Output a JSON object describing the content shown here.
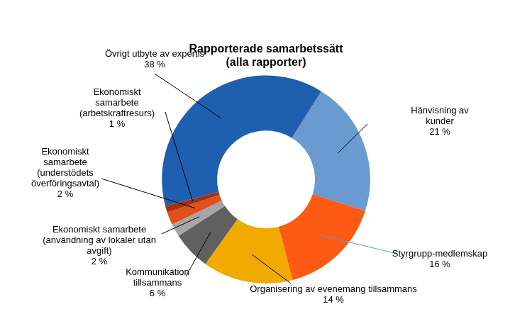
{
  "chart_data": {
    "type": "doughnut",
    "title": [
      "Rapporterade samarbetssätt",
      "(alla rapporter)"
    ],
    "categories": [
      "Hänvisning av kunder",
      "Styrgrupp-medlemskap",
      "Organisering av evenemang tillsammans",
      "Kommunikation tillsammans",
      "Ekonomiskt samarbete (användning av lokaler utan avgift)",
      "Ekonomiskt samarbete (understödets överföringsavtal)",
      "Ekonomiskt samarbete (arbetskraftresurs)",
      "Övrigt utbyte av expertis"
    ],
    "values": [
      21,
      16,
      14,
      6,
      2,
      2,
      1,
      38
    ],
    "value_labels": [
      "21 %",
      "16 %",
      "14 %",
      "6 %",
      "2 %",
      "2 %",
      "1 %",
      "38 %"
    ],
    "colors": [
      "#6a9ad0",
      "#ff5a14",
      "#f0aa00",
      "#606060",
      "#a6a6a6",
      "#e0501a",
      "#a3300e",
      "#1f5faf"
    ],
    "data_labels": true,
    "legend": false
  }
}
